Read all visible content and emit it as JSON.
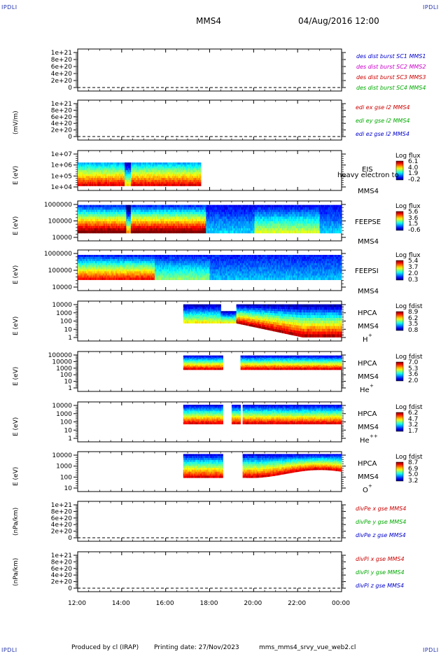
{
  "header": {
    "corner_tl": "IPDLI",
    "corner_tr": "IPDLI",
    "corner_bl": "IPDLI",
    "corner_br": "IPDLI",
    "spacecraft": "MMS4",
    "date": "04/Aug/2016 12:00"
  },
  "footer": {
    "produced": "Produced by cl (IRAP)",
    "printing": "Printing date: 27/Nov/2023",
    "file": "mms_mms4_srvy_vue_web2.cl"
  },
  "time_axis": [
    "12:00",
    "14:00",
    "16:00",
    "18:00",
    "20:00",
    "22:00",
    "00:00"
  ],
  "chart_data": [
    {
      "type": "line",
      "panel": "des-dist",
      "ylabel": "",
      "ticks": [
        "1e+21",
        "8e+20",
        "6e+20",
        "4e+20",
        "2e+20",
        "0"
      ],
      "series": [
        {
          "name": "des dist burst SC1 MMS1",
          "color": "#0000cc",
          "values": []
        },
        {
          "name": "des dist burst SC2 MMS2",
          "color": "#cc00cc",
          "values": []
        },
        {
          "name": "des dist burst SC3 MMS3",
          "color": "#cc0000",
          "values": []
        },
        {
          "name": "des dist burst SC4 MMS4",
          "color": "#00aa00",
          "values": []
        }
      ]
    },
    {
      "type": "line",
      "panel": "edi",
      "ylabel": "(mV/m)",
      "ticks": [
        "1e+21",
        "8e+20",
        "6e+20",
        "4e+20",
        "2e+20",
        "0"
      ],
      "series": [
        {
          "name": "edi ex gse l2 MMS4",
          "color": "#cc0000",
          "values": []
        },
        {
          "name": "edi ey gse l2 MMS4",
          "color": "#00aa00",
          "values": []
        },
        {
          "name": "edi ez gse l2 MMS4",
          "color": "#0000cc",
          "values": []
        }
      ]
    },
    {
      "type": "heatmap",
      "panel": "eis",
      "ylabel": "E (eV)",
      "ticks": [
        "1e+07",
        "1e+06",
        "1e+05",
        "1e+04"
      ],
      "labels": [
        "EIS",
        "MMS4"
      ],
      "overlay": "heavy electron to",
      "colorbar": {
        "title": "Log flux",
        "values": [
          "6.1",
          "4.0",
          "1.9",
          "-0.2"
        ]
      }
    },
    {
      "type": "heatmap",
      "panel": "feeps-e",
      "ylabel": "E (eV)",
      "ticks": [
        "1000000",
        "100000",
        "10000"
      ],
      "labels": [
        "FEEPSE",
        "MMS4"
      ],
      "colorbar": {
        "title": "Log flux",
        "values": [
          "5.6",
          "3.6",
          "1.5",
          "-0.6"
        ]
      }
    },
    {
      "type": "heatmap",
      "panel": "feeps-i",
      "ylabel": "E (eV)",
      "ticks": [
        "1000000",
        "100000",
        "10000"
      ],
      "labels": [
        "FEEPSI",
        "MMS4"
      ],
      "colorbar": {
        "title": "Log flux",
        "values": [
          "5.4",
          "3.7",
          "2.0",
          "0.3"
        ]
      }
    },
    {
      "type": "heatmap",
      "panel": "hpca-h",
      "ylabel": "E (eV)",
      "ticks": [
        "10000",
        "1000",
        "100",
        "10",
        "1"
      ],
      "labels": [
        "HPCA",
        "MMS4",
        "H",
        "+"
      ],
      "colorbar": {
        "title": "Log fdist",
        "values": [
          "8.9",
          "6.2",
          "3.5",
          "0.8"
        ]
      }
    },
    {
      "type": "heatmap",
      "panel": "hpca-he1",
      "ylabel": "E (eV)",
      "ticks": [
        "100000",
        "10000",
        "1000",
        "100",
        "10",
        "1"
      ],
      "labels": [
        "HPCA",
        "MMS4",
        "He",
        "+"
      ],
      "colorbar": {
        "title": "Log fdist",
        "values": [
          "7.0",
          "5.3",
          "3.6",
          "2.0"
        ]
      }
    },
    {
      "type": "heatmap",
      "panel": "hpca-he2",
      "ylabel": "E (eV)",
      "ticks": [
        "10000",
        "1000",
        "100",
        "10",
        "1"
      ],
      "labels": [
        "HPCA",
        "MMS4",
        "He",
        "++"
      ],
      "colorbar": {
        "title": "Log fdist",
        "values": [
          "6.2",
          "4.7",
          "3.2",
          "1.7"
        ]
      }
    },
    {
      "type": "heatmap",
      "panel": "hpca-o",
      "ylabel": "E (eV)",
      "ticks": [
        "10000",
        "1000",
        "100",
        "10"
      ],
      "labels": [
        "HPCA",
        "MMS4",
        "O",
        "+"
      ],
      "colorbar": {
        "title": "Log fdist",
        "values": [
          "8.7",
          "6.9",
          "5.0",
          "3.2"
        ]
      }
    },
    {
      "type": "line",
      "panel": "divpe",
      "ylabel": "(nPa/km)",
      "ticks": [
        "1e+21",
        "8e+20",
        "6e+20",
        "4e+20",
        "2e+20",
        "0"
      ],
      "series": [
        {
          "name": "divPe x gse MMS4",
          "color": "#cc0000",
          "values": []
        },
        {
          "name": "divPe y gse MMS4",
          "color": "#00aa00",
          "values": []
        },
        {
          "name": "divPe z gse MMS4",
          "color": "#0000cc",
          "values": []
        }
      ]
    },
    {
      "type": "line",
      "panel": "divpi",
      "ylabel": "(nPa/km)",
      "ticks": [
        "1e+21",
        "8e+20",
        "6e+20",
        "4e+20",
        "2e+20",
        "0"
      ],
      "series": [
        {
          "name": "divPi x gse MMS4",
          "color": "#cc0000",
          "values": []
        },
        {
          "name": "divPi y gse MMS4",
          "color": "#00aa00",
          "values": []
        },
        {
          "name": "divPi z gse MMS4",
          "color": "#0000cc",
          "values": []
        }
      ]
    }
  ]
}
